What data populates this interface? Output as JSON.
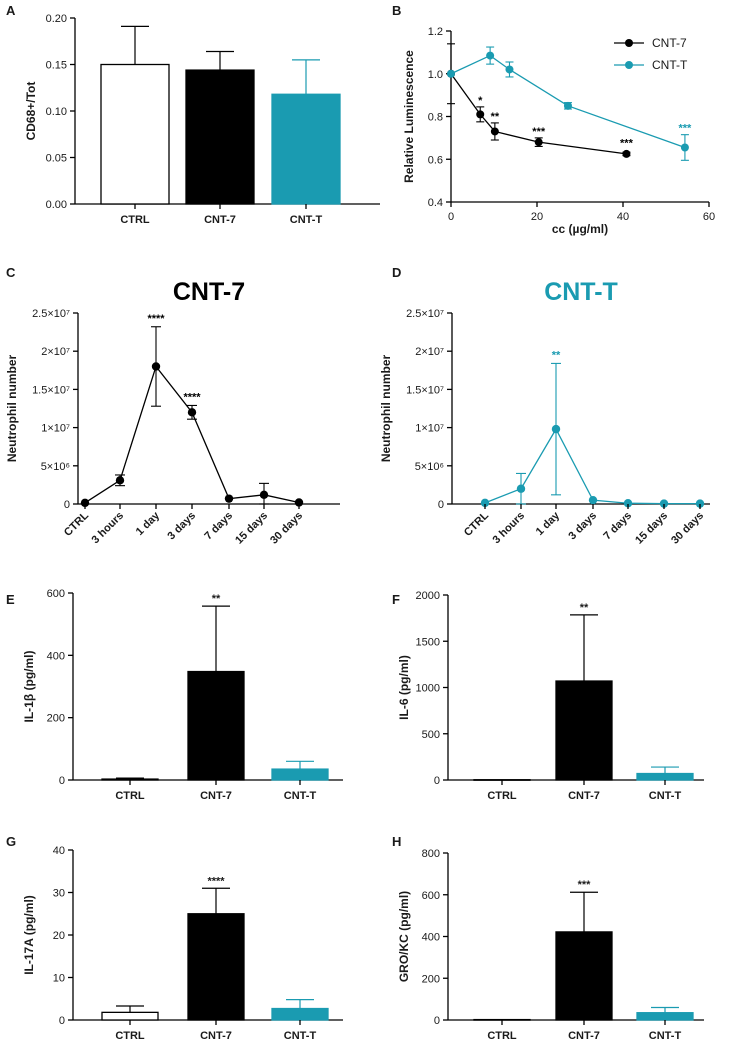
{
  "colors": {
    "black": "#000000",
    "teal": "#1a9bb1",
    "white": "#ffffff"
  },
  "panels": {
    "A": {
      "label": "A"
    },
    "B": {
      "label": "B"
    },
    "C": {
      "label": "C"
    },
    "D": {
      "label": "D"
    },
    "E": {
      "label": "E"
    },
    "F": {
      "label": "F"
    },
    "G": {
      "label": "G"
    },
    "H": {
      "label": "H"
    }
  },
  "chart_data": [
    {
      "id": "A",
      "type": "bar",
      "ylabel": "CD68+/Tot",
      "ylim": [
        0,
        0.2
      ],
      "yticks": [
        "0.00",
        "0.05",
        "0.10",
        "0.15",
        "0.20"
      ],
      "ytick_values": [
        0,
        0.05,
        0.1,
        0.15,
        0.2
      ],
      "categories": [
        "CTRL",
        "CNT-7",
        "CNT-T"
      ],
      "values": [
        0.15,
        0.144,
        0.118
      ],
      "errors": [
        0.041,
        0.02,
        0.037
      ],
      "fills": [
        "white",
        "black",
        "teal"
      ],
      "stars": [
        "",
        "",
        ""
      ]
    },
    {
      "id": "B",
      "type": "line",
      "xlabel": "cc (µg/ml)",
      "ylabel": "Relative Luminescence",
      "xlim": [
        0,
        60
      ],
      "ylim": [
        0.4,
        1.2
      ],
      "xticks": [
        "0",
        "20",
        "40",
        "60"
      ],
      "xtick_values": [
        0,
        20,
        40,
        60
      ],
      "yticks": [
        "0.4",
        "0.6",
        "0.8",
        "1.0",
        "1.2"
      ],
      "ytick_values": [
        0.4,
        0.6,
        0.8,
        1.0,
        1.2
      ],
      "legend": [
        "CNT-7",
        "CNT-T"
      ],
      "series": [
        {
          "name": "CNT-7",
          "color": "black",
          "x": [
            0,
            6.8,
            10.2,
            20.4,
            40.8
          ],
          "y": [
            1.0,
            0.81,
            0.73,
            0.68,
            0.625
          ],
          "err": [
            0.14,
            0.035,
            0.04,
            0.02,
            0.008
          ],
          "stars": [
            "",
            "*",
            "**",
            "***",
            "***"
          ]
        },
        {
          "name": "CNT-T",
          "color": "teal",
          "x": [
            0,
            9.1,
            13.6,
            27.2,
            54.4
          ],
          "y": [
            1.0,
            1.085,
            1.02,
            0.85,
            0.655
          ],
          "err": [
            0,
            0.04,
            0.035,
            0.015,
            0.06
          ],
          "stars": [
            "",
            "",
            "",
            "",
            "***"
          ]
        }
      ]
    },
    {
      "id": "C",
      "type": "line",
      "title": "CNT-7",
      "ylabel": "Neutrophil number",
      "color": "black",
      "ylim": [
        0,
        25000000
      ],
      "yticks": [
        "0",
        "5×10⁶",
        "1×10⁷",
        "1.5×10⁷",
        "2×10⁷",
        "2.5×10⁷"
      ],
      "ytick_values": [
        0,
        5000000,
        10000000,
        15000000,
        20000000,
        25000000
      ],
      "categories": [
        "CTRL",
        "3 hours",
        "1 day",
        "3 days",
        "7 days",
        "15 days",
        "30 days"
      ],
      "values": [
        150000,
        3100000,
        18000000,
        12000000,
        700000,
        1200000,
        200000
      ],
      "errors": [
        0,
        700000,
        5200000,
        900000,
        0,
        1500000,
        0
      ],
      "stars": [
        "",
        "",
        "****",
        "****",
        "",
        "",
        ""
      ]
    },
    {
      "id": "D",
      "type": "line",
      "title": "CNT-T",
      "ylabel": "Neutrophil number",
      "color": "teal",
      "ylim": [
        0,
        25000000
      ],
      "yticks": [
        "0",
        "5×10⁶",
        "1×10⁷",
        "1.5×10⁷",
        "2×10⁷",
        "2.5×10⁷"
      ],
      "ytick_values": [
        0,
        5000000,
        10000000,
        15000000,
        20000000,
        25000000
      ],
      "categories": [
        "CTRL",
        "3 hours",
        "1 day",
        "3 days",
        "7 days",
        "15 days",
        "30 days"
      ],
      "values": [
        150000,
        2000000,
        9800000,
        500000,
        100000,
        50000,
        50000
      ],
      "errors": [
        0,
        2000000,
        8600000,
        0,
        0,
        0,
        0
      ],
      "stars": [
        "",
        "",
        "**",
        "",
        "",
        "",
        ""
      ]
    },
    {
      "id": "E",
      "type": "bar",
      "ylabel": "IL-1β (pg/ml)",
      "ylim": [
        0,
        600
      ],
      "yticks": [
        "0",
        "200",
        "400",
        "600"
      ],
      "ytick_values": [
        0,
        200,
        400,
        600
      ],
      "categories": [
        "CTRL",
        "CNT-7",
        "CNT-T"
      ],
      "values": [
        3,
        348,
        35
      ],
      "errors": [
        3,
        210,
        25
      ],
      "fills": [
        "white",
        "black",
        "teal"
      ],
      "stars": [
        "",
        "**",
        ""
      ]
    },
    {
      "id": "F",
      "type": "bar",
      "ylabel": "IL-6 (pg/ml)",
      "ylim": [
        0,
        2000
      ],
      "yticks": [
        "0",
        "500",
        "1000",
        "1500",
        "2000"
      ],
      "ytick_values": [
        0,
        500,
        1000,
        1500,
        2000
      ],
      "categories": [
        "CTRL",
        "CNT-7",
        "CNT-T"
      ],
      "values": [
        3,
        1070,
        70
      ],
      "errors": [
        0,
        715,
        70
      ],
      "fills": [
        "white",
        "black",
        "teal"
      ],
      "stars": [
        "",
        "**",
        ""
      ]
    },
    {
      "id": "G",
      "type": "bar",
      "ylabel": "IL-17A (pg/ml)",
      "ylim": [
        0,
        40
      ],
      "yticks": [
        "0",
        "10",
        "20",
        "30",
        "40"
      ],
      "ytick_values": [
        0,
        10,
        20,
        30,
        40
      ],
      "categories": [
        "CTRL",
        "CNT-7",
        "CNT-T"
      ],
      "values": [
        1.8,
        25,
        2.7
      ],
      "errors": [
        1.5,
        6,
        2.1
      ],
      "fills": [
        "white",
        "black",
        "teal"
      ],
      "stars": [
        "",
        "****",
        ""
      ]
    },
    {
      "id": "H",
      "type": "bar",
      "ylabel": "GRO/KC (pg/ml)",
      "ylim": [
        0,
        800
      ],
      "yticks": [
        "0",
        "200",
        "400",
        "600",
        "800"
      ],
      "ytick_values": [
        0,
        200,
        400,
        600,
        800
      ],
      "categories": [
        "CTRL",
        "CNT-7",
        "CNT-T"
      ],
      "values": [
        2,
        422,
        35
      ],
      "errors": [
        0,
        190,
        25
      ],
      "fills": [
        "white",
        "black",
        "teal"
      ],
      "stars": [
        "",
        "***",
        ""
      ]
    }
  ]
}
